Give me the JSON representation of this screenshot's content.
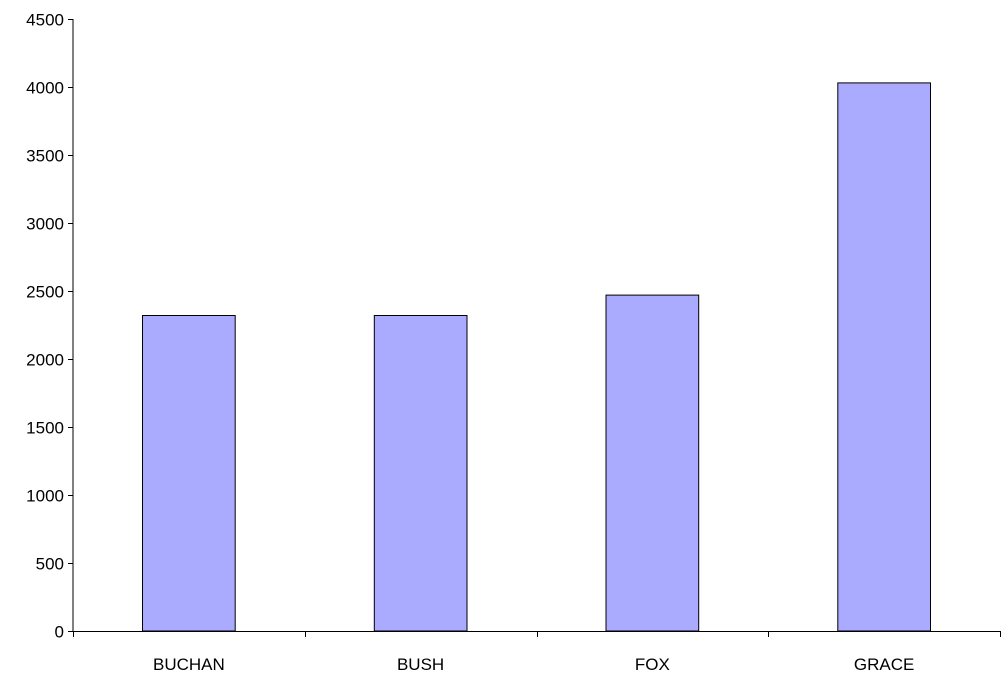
{
  "chart_data": {
    "type": "bar",
    "title": "",
    "xlabel": "",
    "ylabel": "",
    "categories": [
      "BUCHAN",
      "BUSH",
      "FOX",
      "GRACE"
    ],
    "values": [
      2320,
      2320,
      2470,
      4030
    ],
    "ylim": [
      0,
      4500
    ],
    "yticks": [
      0,
      500,
      1000,
      1500,
      2000,
      2500,
      3000,
      3500,
      4000,
      4500
    ],
    "grid": false,
    "legend": "none",
    "bar_color": "#aaaaff",
    "bar_border_color": "#000000"
  }
}
